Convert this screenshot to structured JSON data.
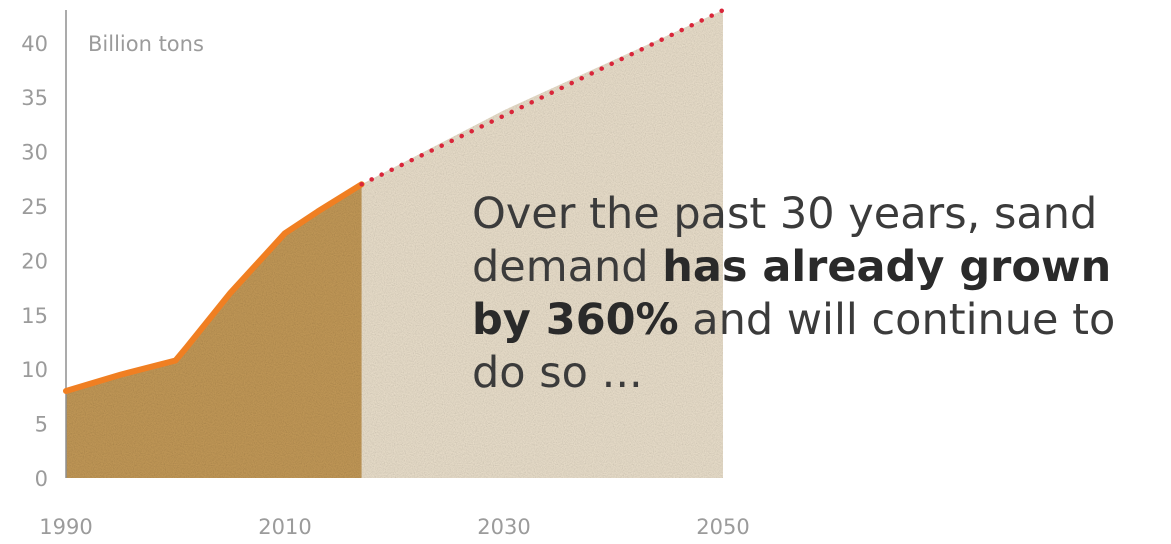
{
  "chart_data": {
    "type": "area",
    "ylabel": "Billion tons",
    "ylim": [
      0,
      40
    ],
    "xlim": [
      1990,
      2050
    ],
    "y_ticks": [
      "0",
      "5",
      "10",
      "15",
      "20",
      "25",
      "30",
      "35",
      "40"
    ],
    "x_ticks": [
      "1990",
      "2010",
      "2030",
      "2050"
    ],
    "grid": false,
    "series": [
      {
        "style": "solid",
        "color": "#f07f22",
        "x": [
          1990,
          1995,
          2000,
          2001,
          2005,
          2010,
          2013,
          2017
        ],
        "values": [
          8,
          9.5,
          10.8,
          12,
          17,
          22.5,
          24.5,
          27
        ]
      },
      {
        "style": "dotted",
        "color": "#d9263a",
        "x": [
          2017,
          2030,
          2050
        ],
        "values": [
          27,
          33.8,
          43
        ]
      }
    ],
    "annotation": {
      "text_1": "Over the past 30 years, sand demand ",
      "bold_1": "has already grown by 360%",
      "text_2": " and will continue to do so ..."
    },
    "colors": {
      "historic_fill": "#c49a58",
      "projection_fill": "#ece1cd",
      "axis": "#8f8f8f",
      "tick_text": "#9b9b9b"
    }
  }
}
